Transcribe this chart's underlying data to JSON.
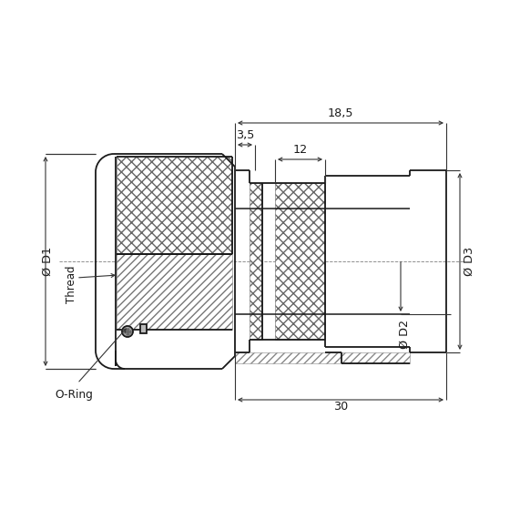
{
  "bg_color": "#ffffff",
  "line_color": "#1a1a1a",
  "dim_color": "#333333",
  "dim_18_5": "18,5",
  "dim_3_5": "3,5",
  "dim_12": "12",
  "dim_30": "30",
  "dim_D1": "Ø D1",
  "dim_Thread": "Thread",
  "dim_ORing": "O-Ring",
  "dim_D2": "Ø D2",
  "dim_D3": "Ø D3"
}
